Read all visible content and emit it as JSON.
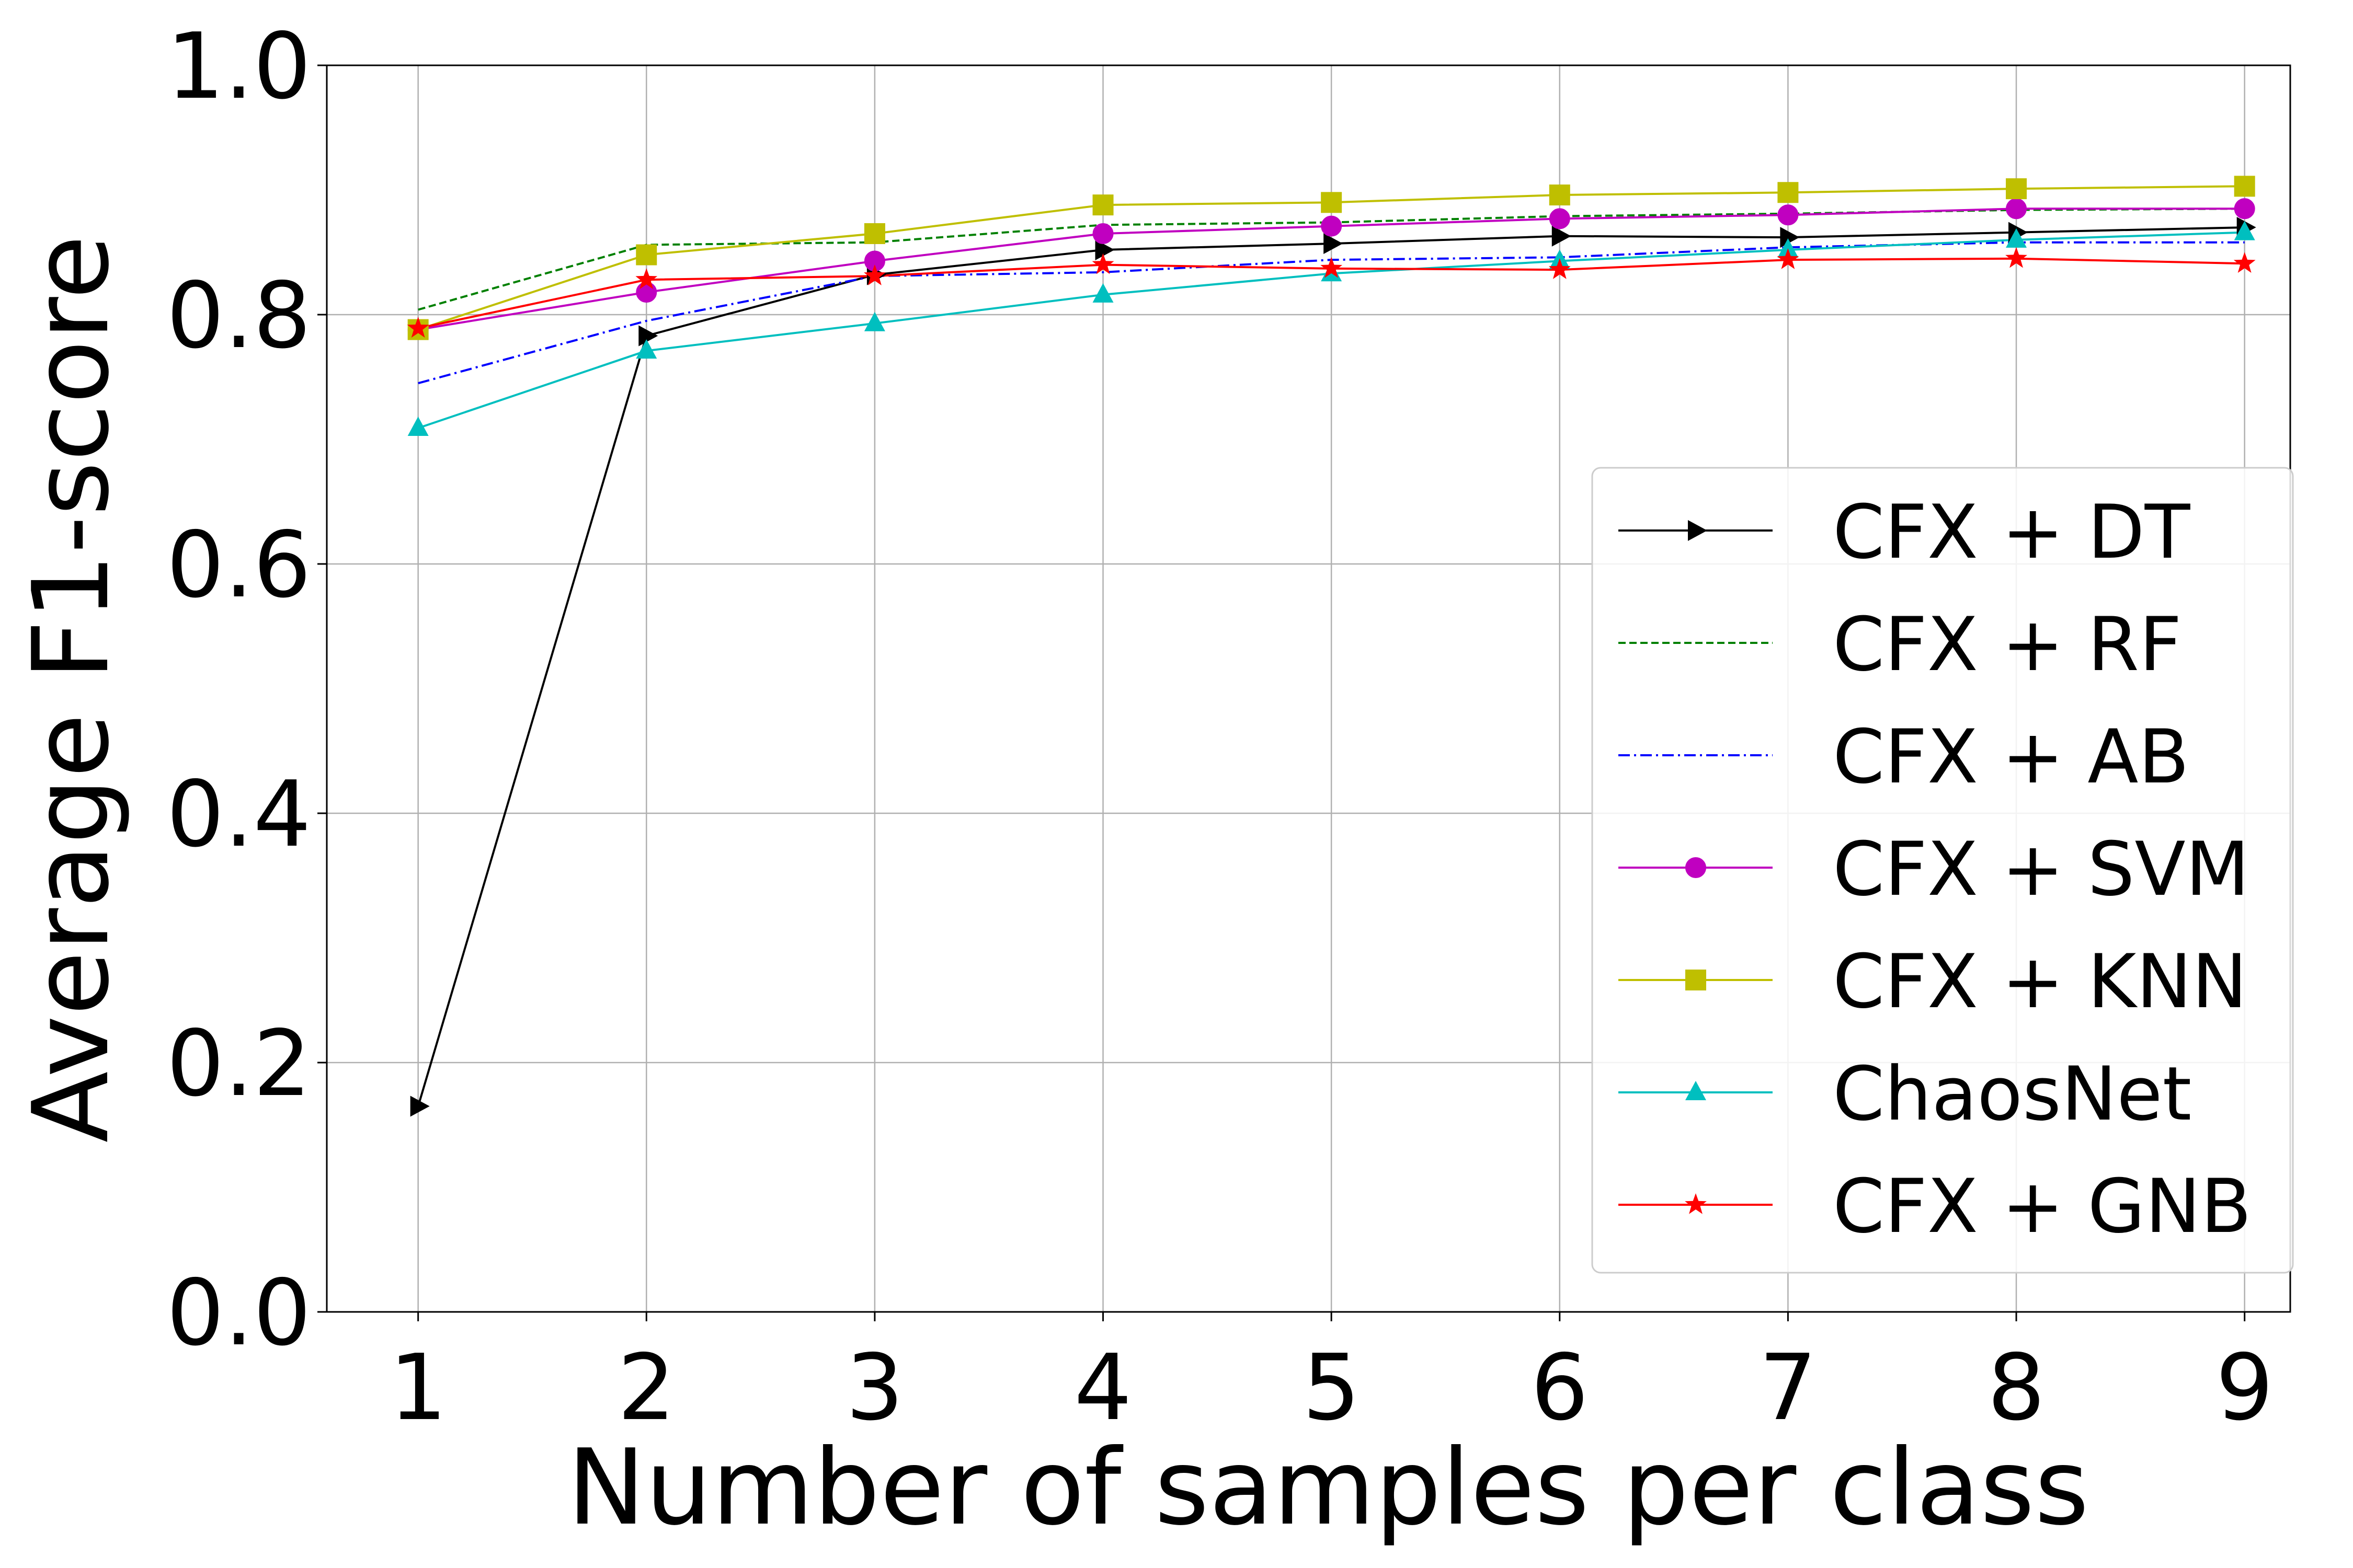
{
  "chart_data": {
    "type": "line",
    "title": "",
    "xlabel": "Number of samples per class",
    "ylabel": "Average F1-score",
    "x": [
      1,
      2,
      3,
      4,
      5,
      6,
      7,
      8,
      9
    ],
    "xticks": [
      "1",
      "2",
      "3",
      "4",
      "5",
      "6",
      "7",
      "8",
      "9"
    ],
    "yticks": [
      "0.0",
      "0.2",
      "0.4",
      "0.6",
      "0.8",
      "1.0"
    ],
    "xlim": [
      0.6,
      9.2
    ],
    "ylim": [
      0.0,
      1.0
    ],
    "grid": true,
    "legend_position": "center-right",
    "series": [
      {
        "name": "CFX + DT",
        "color": "#000000",
        "dash": "solid",
        "marker": "triangle-right",
        "values": [
          0.165,
          0.783,
          0.832,
          0.852,
          0.857,
          0.863,
          0.862,
          0.866,
          0.87
        ]
      },
      {
        "name": "CFX + RF",
        "color": "#008000",
        "dash": "dashed",
        "marker": "none",
        "values": [
          0.804,
          0.856,
          0.858,
          0.872,
          0.874,
          0.879,
          0.881,
          0.884,
          0.885
        ]
      },
      {
        "name": "CFX + AB",
        "color": "#0000ff",
        "dash": "dashdot",
        "marker": "none",
        "values": [
          0.745,
          0.795,
          0.831,
          0.834,
          0.844,
          0.846,
          0.854,
          0.858,
          0.858
        ]
      },
      {
        "name": "CFX + SVM",
        "color": "#c000c0",
        "dash": "solid",
        "marker": "circle",
        "values": [
          0.788,
          0.818,
          0.843,
          0.865,
          0.871,
          0.877,
          0.88,
          0.885,
          0.885
        ]
      },
      {
        "name": "CFX + KNN",
        "color": "#bfbf00",
        "dash": "solid",
        "marker": "square",
        "values": [
          0.788,
          0.848,
          0.865,
          0.888,
          0.89,
          0.896,
          0.898,
          0.901,
          0.903
        ]
      },
      {
        "name": "ChaosNet",
        "color": "#00bfbf",
        "dash": "solid",
        "marker": "triangle-up",
        "values": [
          0.709,
          0.771,
          0.793,
          0.816,
          0.833,
          0.843,
          0.852,
          0.86,
          0.866
        ]
      },
      {
        "name": "CFX + GNB",
        "color": "#ff0000",
        "dash": "solid",
        "marker": "star",
        "values": [
          0.789,
          0.828,
          0.831,
          0.84,
          0.837,
          0.836,
          0.844,
          0.845,
          0.841
        ]
      }
    ]
  }
}
